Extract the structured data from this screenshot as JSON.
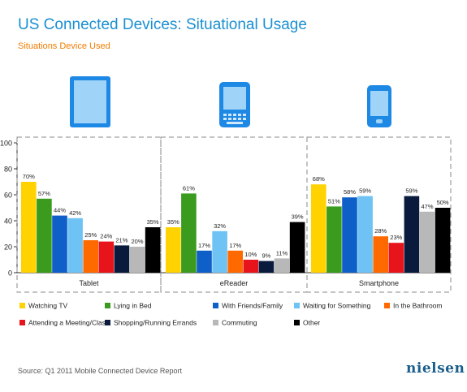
{
  "title": "US Connected Devices: Situational Usage",
  "subtitle": "Situations Device Used",
  "source": "Source: Q1 2011 Mobile Connected Device Report",
  "brand": "nielsen",
  "colors": {
    "title": "#1a8fd1",
    "subtitle": "#f07c00",
    "device_icon": "#1e88e5"
  },
  "device_icons": [
    "tablet-icon",
    "ereader-icon",
    "smartphone-icon"
  ],
  "chart_data": {
    "type": "bar",
    "categories": [
      "Tablet",
      "eReader",
      "Smartphone"
    ],
    "ylim": [
      0,
      100
    ],
    "yticks": [
      0,
      20,
      40,
      60,
      80,
      100
    ],
    "grid": false,
    "legend_position": "bottom",
    "series": [
      {
        "name": "Watching TV",
        "color": "#ffd200",
        "values": [
          70,
          35,
          68
        ],
        "labels": [
          "70%",
          "35%",
          "68%"
        ]
      },
      {
        "name": "Lying in Bed",
        "color": "#3a9b1e",
        "values": [
          57,
          61,
          51
        ],
        "labels": [
          "57%",
          "61%",
          "51%"
        ]
      },
      {
        "name": "With Friends/Family",
        "color": "#0f5fc8",
        "values": [
          44,
          17,
          58
        ],
        "labels": [
          "44%",
          "17%",
          "58%"
        ]
      },
      {
        "name": "Waiting for Something",
        "color": "#6ec3f4",
        "values": [
          42,
          32,
          59
        ],
        "labels": [
          "42%",
          "32%",
          "59%"
        ]
      },
      {
        "name": "In the Bathroom",
        "color": "#ff6a00",
        "values": [
          25,
          17,
          28
        ],
        "labels": [
          "25%",
          "17%",
          "28%"
        ]
      },
      {
        "name": "Attending a Meeting/Class",
        "color": "#e8141c",
        "values": [
          24,
          10,
          23
        ],
        "labels": [
          "24%",
          "10%",
          "23%"
        ]
      },
      {
        "name": "Shopping/Running Errands",
        "color": "#0a1a3c",
        "values": [
          21,
          9,
          59
        ],
        "labels": [
          "21%",
          "9%",
          "59%"
        ]
      },
      {
        "name": "Commuting",
        "color": "#b8b8b8",
        "values": [
          20,
          11,
          47
        ],
        "labels": [
          "20%",
          "11%",
          "47%"
        ]
      },
      {
        "name": "Other",
        "color": "#000000",
        "values": [
          35,
          39,
          50
        ],
        "labels": [
          "35%",
          "39%",
          "50%"
        ]
      }
    ]
  }
}
